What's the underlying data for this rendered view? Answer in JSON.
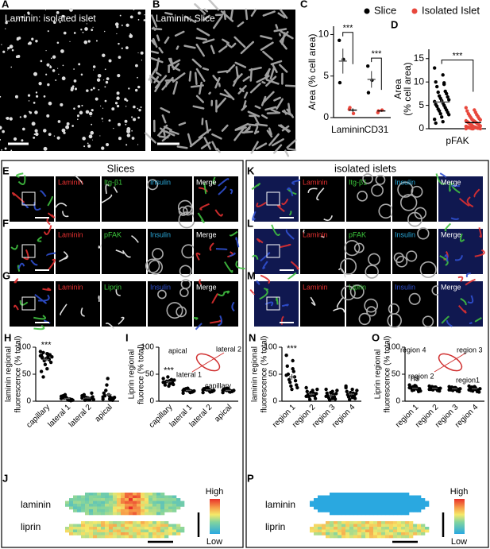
{
  "panels": {
    "A": {
      "letter": "A",
      "label": "Laminin: isolated islet"
    },
    "B": {
      "letter": "B",
      "label": "Laminin: Slice"
    }
  },
  "slices": {
    "title": "Slices",
    "rows": [
      {
        "letter": "E",
        "channels": [
          "Laminin",
          "Itg-β1",
          "Insulin",
          "Merge"
        ]
      },
      {
        "letter": "F",
        "channels": [
          "Laminin",
          "pFAK",
          "Insulin",
          "Merge"
        ]
      },
      {
        "letter": "G",
        "channels": [
          "Laminin",
          "Liprin",
          "Insulin",
          "Merge"
        ]
      }
    ],
    "heatmap": {
      "letter": "J",
      "rows": [
        "laminin",
        "liprin"
      ],
      "high": "High",
      "low": "Low"
    }
  },
  "islets": {
    "title": "isolated islets",
    "rows": [
      {
        "letter": "K",
        "channels": [
          "Laminin",
          "Itg-β1",
          "Insulin",
          "Merge"
        ]
      },
      {
        "letter": "L",
        "channels": [
          "Laminin",
          "pFAK",
          "Insulin",
          "Merge"
        ]
      },
      {
        "letter": "M",
        "channels": [
          "Laminin",
          "Liprin",
          "Insulin",
          "Merge"
        ]
      }
    ],
    "heatmap": {
      "letter": "P",
      "rows": [
        "laminin",
        "liprin"
      ],
      "high": "High",
      "low": "Low"
    }
  },
  "chart_data": [
    {
      "type": "dot",
      "letter": "C",
      "ylabel": [
        "Area (% cell area)"
      ],
      "categories": [
        "Laminin",
        "CD31"
      ],
      "ylim": [
        0,
        11
      ],
      "yticks": [
        0,
        5,
        10
      ],
      "legend": "top",
      "annotations": [
        "***",
        "***"
      ],
      "series": [
        {
          "name": "Slice",
          "color": "#000000",
          "values": [
            [
              9.3,
              7.0,
              4.2
            ],
            [
              6.2,
              4.5,
              3.0
            ]
          ],
          "means": [
            6.8,
            4.6
          ],
          "errors": [
            1.5,
            1.0
          ]
        },
        {
          "name": "Isolated Islet",
          "color": "#e8473c",
          "values": [
            [
              1.0,
              0.5,
              1.2
            ],
            [
              0.6,
              0.9,
              0.8
            ]
          ],
          "means": [
            0.9,
            0.8
          ],
          "errors": [
            0.2,
            0.1
          ]
        }
      ]
    },
    {
      "type": "dot",
      "letter": "D",
      "ylabel": [
        "Area",
        "(% cell area)"
      ],
      "categories": [
        "pFAK"
      ],
      "ylim": [
        0,
        17
      ],
      "yticks": [
        0,
        5,
        10,
        15
      ],
      "annotations": [
        "***"
      ],
      "series": [
        {
          "color": "#000000",
          "values": [
            [
              13,
              11.5,
              10,
              9.5,
              9,
              8,
              7.8,
              7.5,
              7,
              6.8,
              6.5,
              6.2,
              6,
              5.8,
              5.5,
              5.2,
              5,
              4.8,
              4.5,
              4.2,
              4,
              3.8,
              3.5,
              3.2,
              3,
              2.5,
              2,
              1.5,
              1.2,
              9.8
            ]
          ],
          "means": [
            5.7
          ],
          "errors": [
            0.5
          ]
        },
        {
          "color": "#e8473c",
          "values": [
            [
              4.5,
              4,
              3.8,
              3.5,
              3.2,
              3,
              2.8,
              2.6,
              2.4,
              2.2,
              2,
              1.9,
              1.8,
              1.7,
              1.6,
              1.5,
              1.4,
              1.3,
              1.2,
              1.1,
              1,
              0.9,
              0.8,
              0.7,
              0.6,
              0.5,
              0.5,
              0.4,
              0.4,
              0.3,
              0.3,
              0.2,
              0.2,
              0.1,
              0.1,
              0.1,
              0,
              0,
              0,
              0
            ]
          ],
          "means": [
            1.3
          ],
          "errors": [
            0.2
          ]
        }
      ]
    },
    {
      "type": "dot",
      "letter": "H",
      "ylabel": [
        "laminin regional",
        "fluorescence (% total)"
      ],
      "categories": [
        "capillary",
        "lateral 1",
        "lateral 2",
        "apical"
      ],
      "ylim": [
        0,
        100
      ],
      "yticks": [
        0,
        50,
        100
      ],
      "xtick_rotation": -45,
      "annotations": [
        "***",
        null,
        null,
        null
      ],
      "series": [
        {
          "color": "#000000",
          "values": [
            [
              92,
              88,
              85,
              83,
              80,
              78,
              90,
              86,
              75,
              72,
              68,
              82,
              79,
              84,
              60,
              55,
              87,
              81,
              77,
              45
            ],
            [
              5,
              3,
              8,
              2,
              10,
              4,
              6,
              1,
              12,
              3,
              7,
              2,
              5,
              9,
              4
            ],
            [
              6,
              4,
              9,
              3,
              12,
              5,
              2,
              15,
              7,
              8,
              4,
              3,
              6,
              10,
              5
            ],
            [
              8,
              4,
              15,
              3,
              10,
              6,
              20,
              2,
              30,
              5,
              42,
              7,
              12,
              4,
              9
            ]
          ],
          "means": [
            77,
            5,
            6,
            12
          ],
          "errors": [
            3,
            1,
            1,
            3
          ]
        }
      ]
    },
    {
      "type": "dot",
      "letter": "I",
      "ylabel": [
        "Liprin regional",
        "fluorece (% total)"
      ],
      "categories": [
        "capillary",
        "lateral 1",
        "lateral 2",
        "apical"
      ],
      "ylim": [
        0,
        100
      ],
      "yticks": [
        0,
        50,
        100
      ],
      "xtick_rotation": -45,
      "annotations": [
        "***",
        null,
        null,
        null
      ],
      "inset_labels": [
        "apical",
        "lateral 2",
        "lateral 1",
        "capillary"
      ],
      "series": [
        {
          "color": "#000000",
          "values": [
            [
              42,
              38,
              35,
              33,
              30,
              40,
              36,
              34,
              37,
              31,
              45,
              39,
              28,
              35,
              32
            ],
            [
              20,
              18,
              22,
              16,
              21,
              19,
              23,
              17,
              20,
              18,
              24,
              19,
              21,
              15,
              20
            ],
            [
              21,
              19,
              23,
              17,
              22,
              20,
              24,
              18,
              21,
              19,
              25,
              20,
              22,
              16,
              21
            ],
            [
              20,
              18,
              22,
              17,
              21,
              19,
              23,
              18,
              20,
              19,
              24,
              20,
              22,
              16,
              21
            ]
          ],
          "means": [
            36,
            20,
            21,
            20
          ],
          "errors": [
            1,
            1,
            1,
            1
          ]
        }
      ]
    },
    {
      "type": "dot",
      "letter": "N",
      "ylabel": [
        "laminin regional",
        "fluorescence (% total)"
      ],
      "categories": [
        "region 1",
        "region 2",
        "region 3",
        "region 4"
      ],
      "ylim": [
        0,
        100
      ],
      "yticks": [
        0,
        50,
        100
      ],
      "xtick_rotation": -45,
      "annotations": [
        "***",
        null,
        null,
        null
      ],
      "series": [
        {
          "color": "#000000",
          "values": [
            [
              85,
              75,
              65,
              55,
              50,
              45,
              40,
              38,
              35,
              30,
              28,
              25,
              22,
              48,
              60
            ],
            [
              25,
              20,
              18,
              15,
              12,
              10,
              8,
              5,
              3,
              14,
              16,
              22,
              11,
              9,
              13
            ],
            [
              22,
              18,
              15,
              12,
              10,
              8,
              6,
              4,
              2,
              14,
              16,
              20,
              11,
              9,
              5
            ],
            [
              28,
              22,
              18,
              15,
              12,
              10,
              8,
              5,
              3,
              14,
              16,
              20,
              11,
              25,
              7
            ]
          ],
          "means": [
            45,
            13,
            11,
            13
          ],
          "errors": [
            5,
            2,
            2,
            2
          ]
        }
      ]
    },
    {
      "type": "dot",
      "letter": "O",
      "ylabel": [
        "Liprin regional",
        "fluorescence (% total)"
      ],
      "categories": [
        "region 1",
        "region 2",
        "region 3",
        "region 4"
      ],
      "ylim": [
        0,
        100
      ],
      "yticks": [
        0,
        50,
        100
      ],
      "xtick_rotation": -45,
      "annotations": [
        "ns",
        null,
        null,
        null
      ],
      "inset_labels": [
        "region 4",
        "region 3",
        "region 2",
        "region1"
      ],
      "series": [
        {
          "color": "#000000",
          "values": [
            [
              30,
              28,
              26,
              25,
              24,
              22,
              20,
              18,
              27,
              23,
              21,
              19,
              29,
              25,
              24
            ],
            [
              28,
              26,
              25,
              24,
              22,
              20,
              27,
              23,
              21,
              19,
              25,
              24,
              26,
              22,
              23
            ],
            [
              27,
              25,
              24,
              23,
              21,
              19,
              26,
              22,
              20,
              18,
              24,
              23,
              25,
              21,
              22
            ],
            [
              28,
              25,
              23,
              22,
              20,
              18,
              26,
              21,
              19,
              17,
              24,
              23,
              27,
              21,
              22
            ]
          ],
          "means": [
            24,
            24,
            23,
            23
          ],
          "errors": [
            1,
            1,
            1,
            1
          ]
        }
      ]
    }
  ]
}
